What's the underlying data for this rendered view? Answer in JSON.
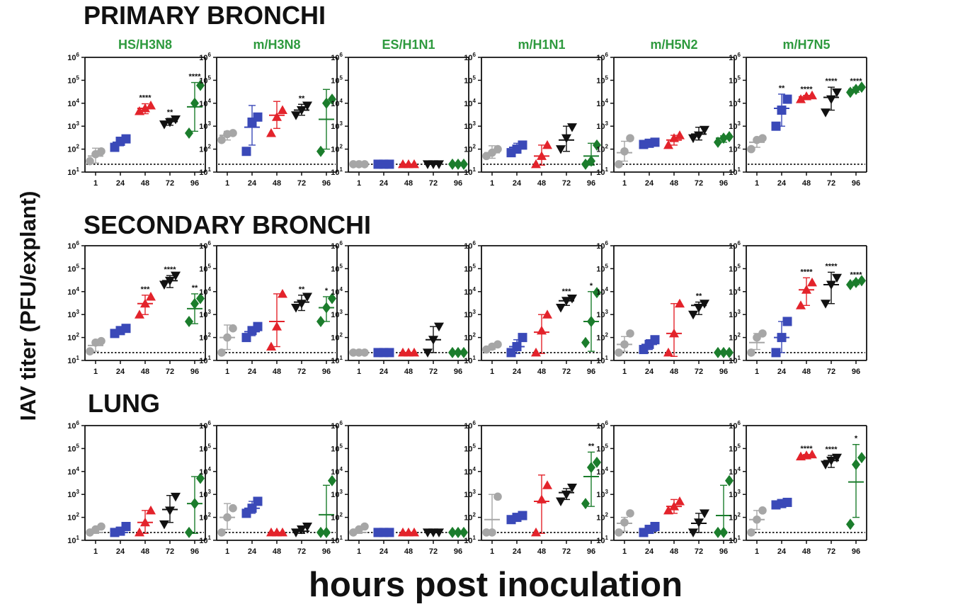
{
  "figure": {
    "ylabel": "IAV titer (PFU/explant)",
    "xlabel": "hours post inoculation",
    "sections": [
      "PRIMARY BRONCHI",
      "SECONDARY BRONCHI",
      "LUNG"
    ],
    "viruses": [
      "HS/H3N8",
      "m/H3N8",
      "ES/H1N1",
      "m/H1N1",
      "m/H5N2",
      "m/H7N5"
    ]
  },
  "colors": {
    "title_green": "#2e9a3e",
    "timepoints": [
      "#a6a6a6",
      "#3a49b8",
      "#e3232b",
      "#111111",
      "#1b7d2c"
    ],
    "axis": "#111111"
  },
  "chart_data": {
    "type": "scatter",
    "y_scale": "log10",
    "ylim": [
      10,
      1000000
    ],
    "y_ticks": [
      "10^1",
      "10^2",
      "10^3",
      "10^4",
      "10^5",
      "10^6"
    ],
    "x_categories": [
      "1",
      "24",
      "48",
      "72",
      "96"
    ],
    "markers": [
      "circle",
      "square",
      "triangle-up",
      "triangle-down",
      "diamond"
    ],
    "limit_of_detection": 22,
    "grid": false,
    "panels": [
      {
        "tissue": "PRIMARY BRONCHI",
        "virus": "HS/H3N8",
        "points": [
          [
            30,
            60,
            80
          ],
          [
            120,
            220,
            280
          ],
          [
            4500,
            6000,
            8000
          ],
          [
            1200,
            1500,
            2000
          ],
          [
            500,
            10000,
            60000
          ]
        ],
        "means": [
          50,
          200,
          6000,
          1600,
          7000
        ],
        "sd": [
          [
            25,
            110
          ],
          [
            140,
            280
          ],
          [
            3500,
            9500
          ],
          [
            1100,
            2200
          ],
          [
            600,
            80000
          ]
        ],
        "stars": [
          "",
          "",
          "****",
          "**",
          "****"
        ]
      },
      {
        "tissue": "PRIMARY BRONCHI",
        "virus": "m/H3N8",
        "points": [
          [
            250,
            450,
            500
          ],
          [
            80,
            1500,
            2500
          ],
          [
            500,
            2500,
            5000
          ],
          [
            3000,
            5000,
            8000
          ],
          [
            80,
            10000,
            15000
          ]
        ],
        "means": [
          400,
          900,
          3000,
          5000,
          2000
        ],
        "sd": [
          [
            250,
            600
          ],
          [
            150,
            8000
          ],
          [
            800,
            12000
          ],
          [
            3000,
            9000
          ],
          [
            100,
            40000
          ]
        ],
        "stars": [
          "",
          "",
          "",
          "**",
          ""
        ]
      },
      {
        "tissue": "PRIMARY BRONCHI",
        "virus": "ES/H1N1",
        "points": [
          [
            22,
            22,
            22
          ],
          [
            22,
            22,
            22
          ],
          [
            22,
            22,
            22
          ],
          [
            22,
            22,
            22
          ],
          [
            22,
            22,
            22
          ]
        ],
        "means": [
          22,
          22,
          22,
          22,
          22
        ],
        "sd": [
          [
            22,
            22
          ],
          [
            22,
            22
          ],
          [
            22,
            22
          ],
          [
            22,
            22
          ],
          [
            22,
            22
          ]
        ],
        "stars": [
          "",
          "",
          "",
          "",
          ""
        ]
      },
      {
        "tissue": "PRIMARY BRONCHI",
        "virus": "m/H1N1",
        "points": [
          [
            50,
            70,
            100
          ],
          [
            70,
            100,
            150
          ],
          [
            22,
            50,
            150
          ],
          [
            100,
            300,
            900
          ],
          [
            22,
            30,
            150
          ]
        ],
        "means": [
          70,
          120,
          50,
          250,
          50
        ],
        "sd": [
          [
            40,
            140
          ],
          [
            70,
            180
          ],
          [
            20,
            150
          ],
          [
            80,
            1000
          ],
          [
            20,
            180
          ]
        ],
        "stars": [
          "",
          "",
          "",
          "",
          ""
        ]
      },
      {
        "tissue": "PRIMARY BRONCHI",
        "virus": "m/H5N2",
        "points": [
          [
            22,
            80,
            300
          ],
          [
            160,
            180,
            200
          ],
          [
            150,
            300,
            400
          ],
          [
            300,
            400,
            700
          ],
          [
            200,
            300,
            350
          ]
        ],
        "means": [
          70,
          180,
          250,
          450,
          300
        ],
        "sd": [
          [
            30,
            220
          ],
          [
            150,
            200
          ],
          [
            150,
            400
          ],
          [
            250,
            900
          ],
          [
            200,
            380
          ]
        ],
        "stars": [
          "",
          "",
          "",
          "",
          ""
        ]
      },
      {
        "tissue": "PRIMARY BRONCHI",
        "virus": "m/H7N5",
        "points": [
          [
            100,
            250,
            300
          ],
          [
            1000,
            5000,
            15000
          ],
          [
            15000,
            20000,
            22000
          ],
          [
            4000,
            15000,
            30000
          ],
          [
            30000,
            40000,
            50000
          ]
        ],
        "means": [
          200,
          6000,
          19000,
          18000,
          40000
        ],
        "sd": [
          [
            120,
            300
          ],
          [
            1000,
            25000
          ],
          [
            15000,
            22000
          ],
          [
            5000,
            50000
          ],
          [
            30000,
            50000
          ]
        ],
        "stars": [
          "",
          "**",
          "****",
          "****",
          "****"
        ]
      },
      {
        "tissue": "SECONDARY BRONCHI",
        "virus": "HS/H3N8",
        "points": [
          [
            25,
            60,
            70
          ],
          [
            150,
            200,
            250
          ],
          [
            1000,
            3000,
            6000
          ],
          [
            20000,
            30000,
            50000
          ],
          [
            500,
            3000,
            5000
          ]
        ],
        "means": [
          45,
          200,
          3000,
          30000,
          1800
        ],
        "sd": [
          [
            25,
            70
          ],
          [
            150,
            260
          ],
          [
            1000,
            7000
          ],
          [
            15000,
            50000
          ],
          [
            400,
            8000
          ]
        ],
        "stars": [
          "",
          "",
          "***",
          "****",
          "**"
        ]
      },
      {
        "tissue": "SECONDARY BRONCHI",
        "virus": "m/H3N8",
        "points": [
          [
            22,
            100,
            250
          ],
          [
            100,
            200,
            300
          ],
          [
            40,
            300,
            8000
          ],
          [
            2000,
            3000,
            6000
          ],
          [
            500,
            2000,
            5000
          ]
        ],
        "means": [
          100,
          180,
          500,
          3500,
          2000
        ],
        "sd": [
          [
            30,
            350
          ],
          [
            120,
            280
          ],
          [
            40,
            8000
          ],
          [
            1500,
            7000
          ],
          [
            500,
            6000
          ]
        ],
        "stars": [
          "",
          "",
          "",
          "**",
          "*"
        ]
      },
      {
        "tissue": "SECONDARY BRONCHI",
        "virus": "ES/H1N1",
        "points": [
          [
            22,
            22,
            22
          ],
          [
            22,
            22,
            22
          ],
          [
            22,
            22,
            22
          ],
          [
            22,
            80,
            300
          ],
          [
            22,
            22,
            22
          ]
        ],
        "means": [
          22,
          22,
          22,
          80,
          22
        ],
        "sd": [
          [
            22,
            22
          ],
          [
            22,
            22
          ],
          [
            22,
            22
          ],
          [
            22,
            300
          ],
          [
            22,
            22
          ]
        ],
        "stars": [
          "",
          "",
          "",
          "",
          ""
        ]
      },
      {
        "tissue": "SECONDARY BRONCHI",
        "virus": "m/H1N1",
        "points": [
          [
            30,
            40,
            50
          ],
          [
            22,
            40,
            100
          ],
          [
            22,
            200,
            1000
          ],
          [
            2000,
            4000,
            5000
          ],
          [
            60,
            500,
            9000
          ]
        ],
        "means": [
          40,
          40,
          170,
          4000,
          500
        ],
        "sd": [
          [
            30,
            50
          ],
          [
            20,
            80
          ],
          [
            20,
            1000
          ],
          [
            2500,
            5500
          ],
          [
            25,
            10000
          ]
        ],
        "stars": [
          "",
          "",
          "",
          "***",
          "*"
        ]
      },
      {
        "tissue": "SECONDARY BRONCHI",
        "virus": "m/H5N2",
        "points": [
          [
            22,
            50,
            150
          ],
          [
            30,
            50,
            80
          ],
          [
            22,
            150,
            3000
          ],
          [
            1000,
            2000,
            3000
          ],
          [
            22,
            22,
            22
          ]
        ],
        "means": [
          50,
          50,
          150,
          2500,
          22
        ],
        "sd": [
          [
            25,
            110
          ],
          [
            30,
            80
          ],
          [
            15,
            3000
          ],
          [
            1000,
            3500
          ],
          [
            22,
            22
          ]
        ],
        "stars": [
          "",
          "",
          "",
          "**",
          ""
        ]
      },
      {
        "tissue": "SECONDARY BRONCHI",
        "virus": "m/H7N5",
        "points": [
          [
            22,
            100,
            150
          ],
          [
            22,
            100,
            500
          ],
          [
            2500,
            12000,
            25000
          ],
          [
            3000,
            20000,
            40000
          ],
          [
            20000,
            25000,
            30000
          ]
        ],
        "means": [
          60,
          100,
          12000,
          20000,
          25000
        ],
        "sd": [
          [
            30,
            150
          ],
          [
            22,
            500
          ],
          [
            2500,
            40000
          ],
          [
            3000,
            70000
          ],
          [
            20000,
            30000
          ]
        ],
        "stars": [
          "",
          "",
          "****",
          "****",
          "****"
        ]
      },
      {
        "tissue": "LUNG",
        "virus": "HS/H3N8",
        "points": [
          [
            22,
            30,
            40
          ],
          [
            22,
            25,
            40
          ],
          [
            22,
            60,
            200
          ],
          [
            50,
            200,
            800
          ],
          [
            22,
            400,
            5000
          ]
        ],
        "means": [
          22,
          22,
          60,
          220,
          400
        ],
        "sd": [
          [
            20,
            30
          ],
          [
            20,
            30
          ],
          [
            20,
            200
          ],
          [
            60,
            900
          ],
          [
            20,
            6000
          ]
        ],
        "stars": [
          "",
          "",
          "",
          "",
          ""
        ]
      },
      {
        "tissue": "LUNG",
        "virus": "m/H3N8",
        "points": [
          [
            22,
            100,
            250
          ],
          [
            150,
            250,
            500
          ],
          [
            22,
            22,
            22
          ],
          [
            22,
            30,
            40
          ],
          [
            22,
            22,
            4000
          ]
        ],
        "means": [
          100,
          250,
          22,
          25,
          130
        ],
        "sd": [
          [
            30,
            400
          ],
          [
            150,
            500
          ],
          [
            22,
            22
          ],
          [
            20,
            40
          ],
          [
            20,
            2500
          ]
        ],
        "stars": [
          "",
          "",
          "",
          "",
          ""
        ]
      },
      {
        "tissue": "LUNG",
        "virus": "ES/H1N1",
        "points": [
          [
            22,
            30,
            40
          ],
          [
            22,
            22,
            22
          ],
          [
            22,
            22,
            22
          ],
          [
            22,
            22,
            22
          ],
          [
            22,
            22,
            22
          ]
        ],
        "means": [
          22,
          22,
          22,
          22,
          22
        ],
        "sd": [
          [
            20,
            30
          ],
          [
            22,
            22
          ],
          [
            22,
            22
          ],
          [
            22,
            22
          ],
          [
            22,
            22
          ]
        ],
        "stars": [
          "",
          "",
          "",
          "",
          ""
        ]
      },
      {
        "tissue": "LUNG",
        "virus": "m/H1N1",
        "points": [
          [
            22,
            22,
            800
          ],
          [
            80,
            100,
            120
          ],
          [
            22,
            600,
            2500
          ],
          [
            500,
            1000,
            2000
          ],
          [
            400,
            15000,
            25000
          ]
        ],
        "means": [
          80,
          100,
          500,
          1200,
          6000
        ],
        "sd": [
          [
            20,
            1000
          ],
          [
            80,
            120
          ],
          [
            20,
            7000
          ],
          [
            600,
            1800
          ],
          [
            300,
            70000
          ]
        ],
        "stars": [
          "",
          "",
          "",
          "",
          "**"
        ]
      },
      {
        "tissue": "LUNG",
        "virus": "m/H5N2",
        "points": [
          [
            22,
            60,
            150
          ],
          [
            22,
            30,
            40
          ],
          [
            200,
            300,
            500
          ],
          [
            22,
            60,
            150
          ],
          [
            22,
            22,
            4000
          ]
        ],
        "means": [
          55,
          25,
          300,
          55,
          120
        ],
        "sd": [
          [
            25,
            100
          ],
          [
            20,
            35
          ],
          [
            150,
            600
          ],
          [
            22,
            150
          ],
          [
            20,
            2500
          ]
        ],
        "stars": [
          "",
          "",
          "",
          "",
          ""
        ]
      },
      {
        "tissue": "LUNG",
        "virus": "m/H7N5",
        "points": [
          [
            22,
            80,
            200
          ],
          [
            350,
            400,
            450
          ],
          [
            45000,
            50000,
            55000
          ],
          [
            20000,
            30000,
            40000
          ],
          [
            50,
            20000,
            40000
          ]
        ],
        "means": [
          80,
          400,
          50000,
          30000,
          3500
        ],
        "sd": [
          [
            30,
            200
          ],
          [
            350,
            450
          ],
          [
            45000,
            55000
          ],
          [
            15000,
            50000
          ],
          [
            100,
            150000
          ]
        ],
        "stars": [
          "",
          "",
          "****",
          "****",
          "*"
        ]
      }
    ]
  }
}
